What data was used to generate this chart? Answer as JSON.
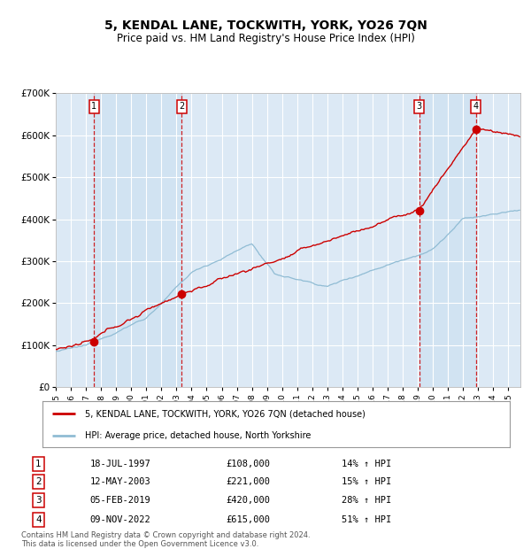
{
  "title": "5, KENDAL LANE, TOCKWITH, YORK, YO26 7QN",
  "subtitle": "Price paid vs. HM Land Registry's House Price Index (HPI)",
  "title_fontsize": 10,
  "subtitle_fontsize": 8.5,
  "ylim": [
    0,
    700000
  ],
  "yticks": [
    0,
    100000,
    200000,
    300000,
    400000,
    500000,
    600000,
    700000
  ],
  "ytick_labels": [
    "£0",
    "£100K",
    "£200K",
    "£300K",
    "£400K",
    "£500K",
    "£600K",
    "£700K"
  ],
  "xstart": 1995,
  "xend": 2025.8,
  "background_color": "#ffffff",
  "plot_bg_color": "#dce9f5",
  "grid_color": "#ffffff",
  "sale_color": "#cc0000",
  "hpi_color": "#90bcd4",
  "transactions": [
    {
      "num": 1,
      "date": "18-JUL-1997",
      "year": 1997.54,
      "price": 108000,
      "pct": "14%",
      "dir": "↑"
    },
    {
      "num": 2,
      "date": "12-MAY-2003",
      "year": 2003.36,
      "price": 221000,
      "pct": "15%",
      "dir": "↑"
    },
    {
      "num": 3,
      "date": "05-FEB-2019",
      "year": 2019.1,
      "price": 420000,
      "pct": "28%",
      "dir": "↑"
    },
    {
      "num": 4,
      "date": "09-NOV-2022",
      "year": 2022.86,
      "price": 615000,
      "pct": "51%",
      "dir": "↑"
    }
  ],
  "footer_line1": "Contains HM Land Registry data © Crown copyright and database right 2024.",
  "footer_line2": "This data is licensed under the Open Government Licence v3.0.",
  "legend_label1": "5, KENDAL LANE, TOCKWITH, YORK, YO26 7QN (detached house)",
  "legend_label2": "HPI: Average price, detached house, North Yorkshire",
  "shade_color": "#c8dff0",
  "xtick_years": [
    1995,
    1996,
    1997,
    1998,
    1999,
    2000,
    2001,
    2002,
    2003,
    2004,
    2005,
    2006,
    2007,
    2008,
    2009,
    2010,
    2011,
    2012,
    2013,
    2014,
    2015,
    2016,
    2017,
    2018,
    2019,
    2020,
    2021,
    2022,
    2023,
    2024,
    2025
  ]
}
